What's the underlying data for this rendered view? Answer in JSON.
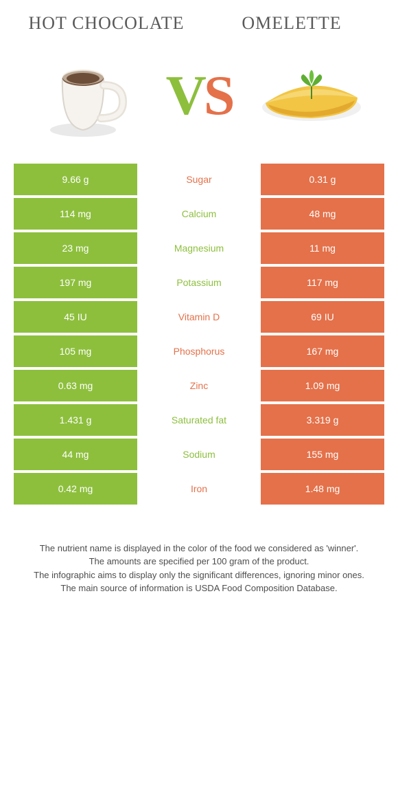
{
  "foods": {
    "left": {
      "name": "Hot Chocolate",
      "color": "#8dbf3d"
    },
    "right": {
      "name": "Omelette",
      "color": "#e4714a"
    }
  },
  "vs": {
    "v": "V",
    "s": "S"
  },
  "table": {
    "left_bg": "#8dbf3d",
    "right_bg": "#e4714a",
    "rows": [
      {
        "label": "Sugar",
        "left": "9.66 g",
        "right": "0.31 g",
        "winner": "right"
      },
      {
        "label": "Calcium",
        "left": "114 mg",
        "right": "48 mg",
        "winner": "left"
      },
      {
        "label": "Magnesium",
        "left": "23 mg",
        "right": "11 mg",
        "winner": "left"
      },
      {
        "label": "Potassium",
        "left": "197 mg",
        "right": "117 mg",
        "winner": "left"
      },
      {
        "label": "Vitamin D",
        "left": "45 IU",
        "right": "69 IU",
        "winner": "right"
      },
      {
        "label": "Phosphorus",
        "left": "105 mg",
        "right": "167 mg",
        "winner": "right"
      },
      {
        "label": "Zinc",
        "left": "0.63 mg",
        "right": "1.09 mg",
        "winner": "right"
      },
      {
        "label": "Saturated fat",
        "left": "1.431 g",
        "right": "3.319 g",
        "winner": "left"
      },
      {
        "label": "Sodium",
        "left": "44 mg",
        "right": "155 mg",
        "winner": "left"
      },
      {
        "label": "Iron",
        "left": "0.42 mg",
        "right": "1.48 mg",
        "winner": "right"
      }
    ]
  },
  "footnotes": [
    "The nutrient name is displayed in the color of the food we considered as 'winner'.",
    "The amounts are specified per 100 gram of the product.",
    "The infographic aims to display only the significant differences, ignoring minor ones.",
    "The main source of information is USDA Food Composition Database."
  ]
}
